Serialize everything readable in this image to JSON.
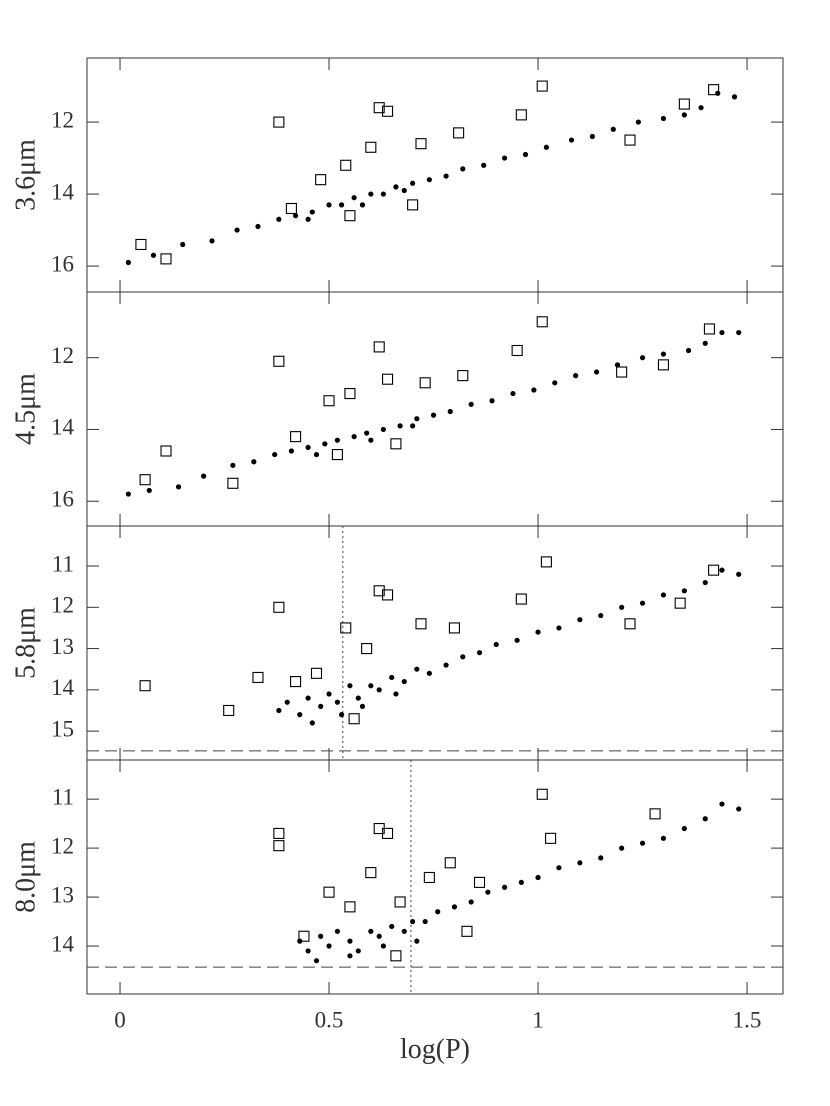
{
  "chart_data": [
    {
      "type": "scatter",
      "y_label": "3.6μm",
      "xlim": [
        -0.079,
        1.586
      ],
      "ylim": [
        16.72,
        10.22
      ],
      "xticks": [
        0,
        0.5,
        1,
        1.5
      ],
      "yticks": [
        12,
        14,
        16
      ],
      "series": [
        {
          "marker": "circle",
          "color": "#000000",
          "x": [
            0.02,
            0.08,
            0.15,
            0.22,
            0.28,
            0.33,
            0.38,
            0.42,
            0.46,
            0.5,
            0.53,
            0.56,
            0.6,
            0.63,
            0.66,
            0.7,
            0.74,
            0.78,
            0.82,
            0.87,
            0.92,
            0.97,
            1.02,
            1.08,
            1.13,
            1.18,
            1.24,
            1.3,
            1.35,
            1.39,
            1.43,
            1.47,
            0.45,
            0.58,
            0.68
          ],
          "values": [
            15.9,
            15.7,
            15.4,
            15.3,
            15.0,
            14.9,
            14.7,
            14.6,
            14.5,
            14.3,
            14.3,
            14.1,
            14.0,
            14.0,
            13.8,
            13.7,
            13.6,
            13.5,
            13.3,
            13.2,
            13.0,
            12.9,
            12.7,
            12.5,
            12.4,
            12.2,
            12.0,
            11.9,
            11.8,
            11.6,
            11.2,
            11.3,
            14.7,
            14.3,
            13.9
          ]
        },
        {
          "marker": "square",
          "color": "#000000",
          "x": [
            0.05,
            0.11,
            0.38,
            0.41,
            0.48,
            0.54,
            0.6,
            0.62,
            0.64,
            0.72,
            0.81,
            0.96,
            1.01,
            1.22,
            1.35,
            1.42,
            0.7,
            0.55
          ],
          "values": [
            15.4,
            15.8,
            12.0,
            14.4,
            13.6,
            13.2,
            12.7,
            11.6,
            11.7,
            12.6,
            12.3,
            11.8,
            11.0,
            12.5,
            11.5,
            11.1,
            14.3,
            14.6
          ]
        }
      ]
    },
    {
      "type": "scatter",
      "y_label": "4.5μm",
      "xlim": [
        -0.079,
        1.586
      ],
      "ylim": [
        16.69,
        10.17
      ],
      "xticks": [
        0,
        0.5,
        1,
        1.5
      ],
      "yticks": [
        12,
        14,
        16
      ],
      "series": [
        {
          "marker": "circle",
          "color": "#000000",
          "x": [
            0.02,
            0.07,
            0.14,
            0.2,
            0.27,
            0.32,
            0.37,
            0.41,
            0.45,
            0.49,
            0.52,
            0.56,
            0.59,
            0.63,
            0.67,
            0.71,
            0.75,
            0.79,
            0.84,
            0.89,
            0.94,
            0.99,
            1.04,
            1.09,
            1.14,
            1.19,
            1.25,
            1.3,
            1.36,
            1.4,
            1.44,
            1.48,
            0.47,
            0.6,
            0.7
          ],
          "values": [
            15.8,
            15.7,
            15.6,
            15.3,
            15.0,
            14.9,
            14.7,
            14.6,
            14.5,
            14.4,
            14.3,
            14.2,
            14.1,
            14.0,
            13.9,
            13.7,
            13.6,
            13.5,
            13.3,
            13.2,
            13.0,
            12.9,
            12.7,
            12.5,
            12.4,
            12.2,
            12.0,
            11.9,
            11.8,
            11.6,
            11.3,
            11.3,
            14.7,
            14.3,
            13.9
          ]
        },
        {
          "marker": "square",
          "color": "#000000",
          "x": [
            0.06,
            0.11,
            0.27,
            0.38,
            0.42,
            0.5,
            0.55,
            0.62,
            0.64,
            0.73,
            0.82,
            0.95,
            1.01,
            1.2,
            1.3,
            1.41,
            0.66,
            0.52
          ],
          "values": [
            15.4,
            14.6,
            15.5,
            12.1,
            14.2,
            13.2,
            13.0,
            11.7,
            12.6,
            12.7,
            12.5,
            11.8,
            11.0,
            12.4,
            12.2,
            11.2,
            14.4,
            14.7
          ]
        }
      ]
    },
    {
      "type": "scatter",
      "y_label": "5.8μm",
      "xlim": [
        -0.079,
        1.586
      ],
      "ylim": [
        15.7,
        10.03
      ],
      "xticks": [
        0,
        0.5,
        1,
        1.5
      ],
      "yticks": [
        11,
        12,
        13,
        14,
        15
      ],
      "hlines": [
        15.48
      ],
      "vlines": [
        0.533
      ],
      "series": [
        {
          "marker": "circle",
          "color": "#000000",
          "x": [
            0.38,
            0.4,
            0.43,
            0.45,
            0.48,
            0.5,
            0.52,
            0.55,
            0.57,
            0.6,
            0.62,
            0.65,
            0.68,
            0.71,
            0.74,
            0.78,
            0.82,
            0.86,
            0.9,
            0.95,
            1.0,
            1.05,
            1.1,
            1.15,
            1.2,
            1.25,
            1.3,
            1.35,
            1.4,
            1.44,
            1.48,
            0.46,
            0.53,
            0.58,
            0.66
          ],
          "values": [
            14.5,
            14.3,
            14.6,
            14.2,
            14.4,
            14.1,
            14.3,
            13.9,
            14.2,
            13.9,
            14.0,
            13.7,
            13.8,
            13.5,
            13.6,
            13.4,
            13.2,
            13.1,
            12.9,
            12.8,
            12.6,
            12.5,
            12.3,
            12.2,
            12.0,
            11.9,
            11.7,
            11.6,
            11.4,
            11.1,
            11.2,
            14.8,
            14.6,
            14.4,
            14.1
          ]
        },
        {
          "marker": "square",
          "color": "#000000",
          "x": [
            0.06,
            0.26,
            0.33,
            0.38,
            0.42,
            0.47,
            0.54,
            0.59,
            0.62,
            0.64,
            0.72,
            0.8,
            0.96,
            1.02,
            1.22,
            1.34,
            1.42,
            0.56
          ],
          "values": [
            13.9,
            14.5,
            13.7,
            12.0,
            13.8,
            13.6,
            12.5,
            13.0,
            11.6,
            11.7,
            12.4,
            12.5,
            11.8,
            10.9,
            12.4,
            11.9,
            11.1,
            14.7
          ]
        }
      ]
    },
    {
      "type": "scatter",
      "y_label": "8.0μm",
      "xlim": [
        -0.079,
        1.586
      ],
      "ylim": [
        14.98,
        10.2
      ],
      "xticks": [
        0,
        0.5,
        1,
        1.5
      ],
      "yticks": [
        11,
        12,
        13,
        14
      ],
      "x_label": "log(P)",
      "hlines": [
        14.43
      ],
      "vlines": [
        0.696
      ],
      "series": [
        {
          "marker": "circle",
          "color": "#000000",
          "x": [
            0.43,
            0.45,
            0.48,
            0.5,
            0.52,
            0.55,
            0.57,
            0.6,
            0.62,
            0.65,
            0.68,
            0.7,
            0.73,
            0.76,
            0.8,
            0.84,
            0.88,
            0.92,
            0.96,
            1.0,
            1.05,
            1.1,
            1.15,
            1.2,
            1.25,
            1.3,
            1.35,
            1.4,
            1.44,
            1.48,
            0.47,
            0.55,
            0.63,
            0.71
          ],
          "values": [
            13.9,
            14.1,
            13.8,
            14.0,
            13.7,
            13.9,
            14.1,
            13.7,
            13.8,
            13.6,
            13.7,
            13.5,
            13.5,
            13.3,
            13.2,
            13.1,
            12.9,
            12.8,
            12.7,
            12.6,
            12.4,
            12.3,
            12.2,
            12.0,
            11.9,
            11.8,
            11.6,
            11.4,
            11.1,
            11.2,
            14.3,
            14.2,
            14.0,
            13.9
          ]
        },
        {
          "marker": "square",
          "color": "#000000",
          "x": [
            0.38,
            0.38,
            0.44,
            0.5,
            0.55,
            0.6,
            0.62,
            0.64,
            0.67,
            0.74,
            0.79,
            0.86,
            1.01,
            1.03,
            1.28,
            0.66,
            0.83
          ],
          "values": [
            11.7,
            11.95,
            13.8,
            12.9,
            13.2,
            12.5,
            11.6,
            11.7,
            13.1,
            12.6,
            12.3,
            12.7,
            10.9,
            11.8,
            11.3,
            14.2,
            13.7
          ]
        }
      ]
    }
  ]
}
